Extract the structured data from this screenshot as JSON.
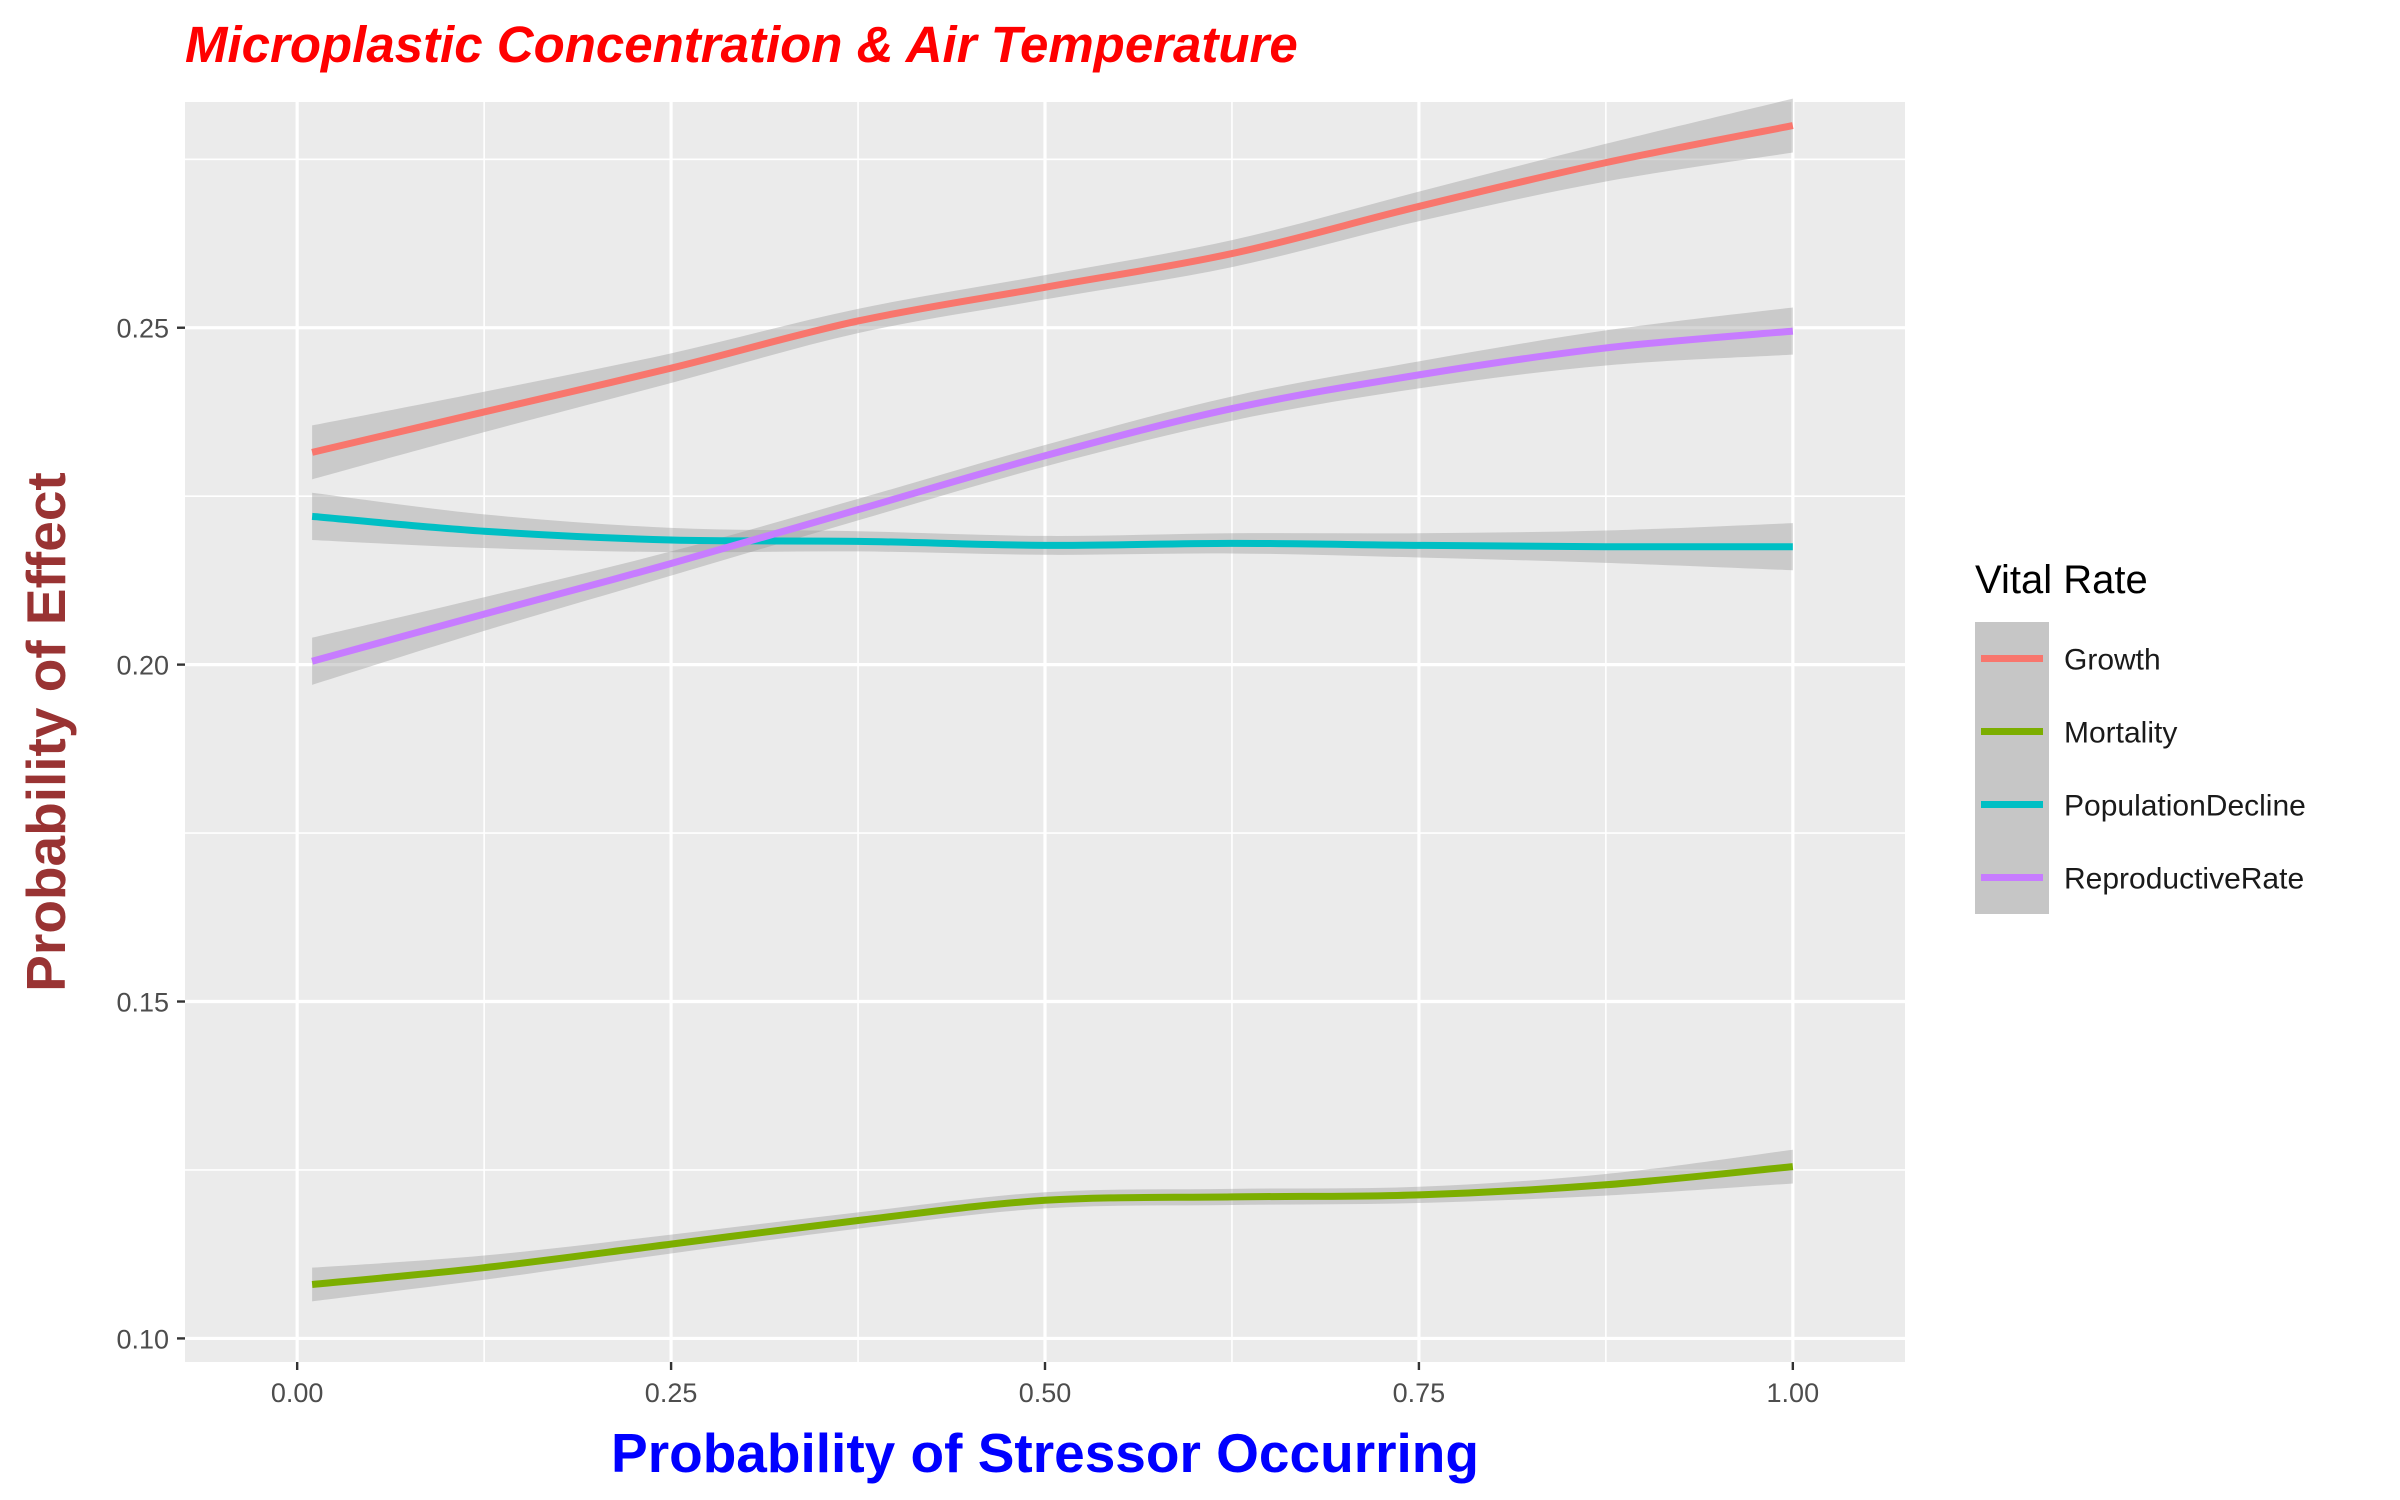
{
  "chart_data": {
    "type": "line",
    "title": "Microplastic Concentration & Air Temperature",
    "title_color": "#ff0000",
    "xlabel": "Probability of Stressor Occurring",
    "xlabel_color": "#0000ff",
    "ylabel": "Probability of Effect",
    "ylabel_color": "#993333",
    "xlim": [
      -0.075,
      1.075
    ],
    "ylim": [
      0.0965,
      0.2835
    ],
    "xticks": [
      0.0,
      0.25,
      0.5,
      0.75,
      1.0
    ],
    "xtick_labels": [
      "0.00",
      "0.25",
      "0.50",
      "0.75",
      "1.00"
    ],
    "yticks": [
      0.1,
      0.15,
      0.2,
      0.25
    ],
    "ytick_labels": [
      "0.10",
      "0.15",
      "0.20",
      "0.25"
    ],
    "grid": true,
    "legend": {
      "title": "Vital Rate",
      "placement": "right"
    },
    "series": [
      {
        "name": "Growth",
        "color": "#f8766d",
        "x": [
          0.01,
          0.125,
          0.25,
          0.375,
          0.5,
          0.625,
          0.75,
          0.875,
          1.0
        ],
        "y": [
          0.2315,
          0.2375,
          0.244,
          0.251,
          0.256,
          0.261,
          0.268,
          0.2745,
          0.28
        ],
        "band": [
          0.004,
          0.003,
          0.0022,
          0.0018,
          0.0018,
          0.002,
          0.0022,
          0.0028,
          0.004
        ]
      },
      {
        "name": "Mortality",
        "color": "#7cae00",
        "x": [
          0.01,
          0.125,
          0.25,
          0.375,
          0.5,
          0.625,
          0.75,
          0.875,
          1.0
        ],
        "y": [
          0.108,
          0.1105,
          0.114,
          0.1175,
          0.1205,
          0.121,
          0.1213,
          0.1228,
          0.1255
        ],
        "band": [
          0.0025,
          0.0018,
          0.0014,
          0.0012,
          0.0012,
          0.0012,
          0.0012,
          0.0016,
          0.0025
        ]
      },
      {
        "name": "PopulationDecline",
        "color": "#00bfc4",
        "x": [
          0.01,
          0.125,
          0.25,
          0.375,
          0.5,
          0.625,
          0.75,
          0.875,
          1.0
        ],
        "y": [
          0.222,
          0.2198,
          0.2185,
          0.2183,
          0.2177,
          0.218,
          0.2177,
          0.2175,
          0.2175
        ],
        "band": [
          0.0035,
          0.0025,
          0.0018,
          0.0015,
          0.0014,
          0.0015,
          0.0018,
          0.0024,
          0.0035
        ]
      },
      {
        "name": "ReproductiveRate",
        "color": "#c77cff",
        "x": [
          0.01,
          0.125,
          0.25,
          0.375,
          0.5,
          0.625,
          0.75,
          0.875,
          1.0
        ],
        "y": [
          0.2005,
          0.2075,
          0.215,
          0.223,
          0.231,
          0.238,
          0.243,
          0.247,
          0.2495
        ],
        "band": [
          0.0035,
          0.0025,
          0.0018,
          0.0016,
          0.0016,
          0.0018,
          0.002,
          0.0026,
          0.0035
        ]
      }
    ]
  }
}
